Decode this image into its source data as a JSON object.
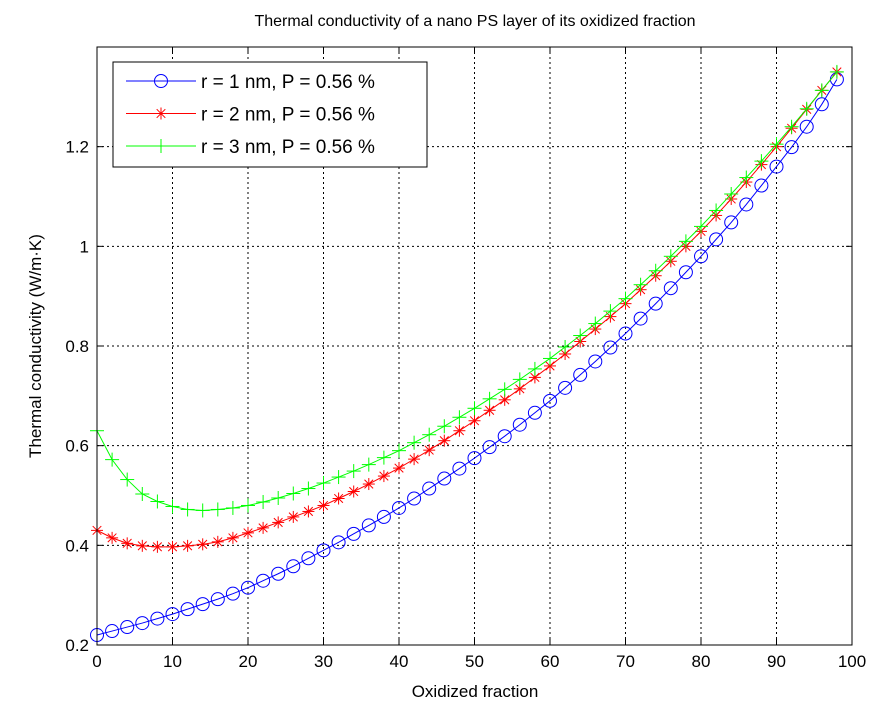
{
  "chart_data": {
    "type": "line",
    "title": "Thermal conductivity of a nano PS layer of its oxidized fraction",
    "xlabel": "Oxidized fraction",
    "ylabel": "Thermal conductivity  (W/m·K)",
    "xlim": [
      0,
      100
    ],
    "ylim": [
      0.2,
      1.4
    ],
    "xticks": [
      0,
      10,
      20,
      30,
      40,
      50,
      60,
      70,
      80,
      90,
      100
    ],
    "yticks": [
      0.2,
      0.4,
      0.6,
      0.8,
      1.0,
      1.2
    ],
    "ytick_labels": [
      "0.2",
      "0.4",
      "0.6",
      "0.8",
      "1",
      "1.2"
    ],
    "grid": true,
    "legend_position": "top-left",
    "x": [
      0,
      2,
      4,
      6,
      8,
      10,
      12,
      14,
      16,
      18,
      20,
      22,
      24,
      26,
      28,
      30,
      32,
      34,
      36,
      38,
      40,
      42,
      44,
      46,
      48,
      50,
      52,
      54,
      56,
      58,
      60,
      62,
      64,
      66,
      68,
      70,
      72,
      74,
      76,
      78,
      80,
      82,
      84,
      86,
      88,
      90,
      92,
      94,
      96,
      98
    ],
    "series": [
      {
        "name": "r = 1 nm, P = 0.56 %",
        "color": "#0000ff",
        "marker": "circle",
        "values": [
          0.22,
          0.228,
          0.236,
          0.244,
          0.253,
          0.262,
          0.272,
          0.282,
          0.292,
          0.303,
          0.315,
          0.329,
          0.343,
          0.358,
          0.374,
          0.39,
          0.406,
          0.423,
          0.44,
          0.457,
          0.475,
          0.494,
          0.514,
          0.534,
          0.554,
          0.575,
          0.597,
          0.619,
          0.642,
          0.666,
          0.69,
          0.716,
          0.742,
          0.769,
          0.797,
          0.825,
          0.855,
          0.885,
          0.916,
          0.948,
          0.98,
          1.014,
          1.048,
          1.084,
          1.122,
          1.16,
          1.199,
          1.24,
          1.285,
          1.335
        ]
      },
      {
        "name": "r = 2 nm, P = 0.56 %",
        "color": "#ff0000",
        "marker": "asterisk",
        "values": [
          0.43,
          0.415,
          0.404,
          0.399,
          0.397,
          0.397,
          0.399,
          0.402,
          0.407,
          0.415,
          0.425,
          0.435,
          0.446,
          0.457,
          0.468,
          0.48,
          0.494,
          0.508,
          0.523,
          0.539,
          0.555,
          0.573,
          0.591,
          0.61,
          0.63,
          0.65,
          0.671,
          0.692,
          0.714,
          0.737,
          0.76,
          0.784,
          0.809,
          0.834,
          0.859,
          0.885,
          0.913,
          0.941,
          0.97,
          1.0,
          1.03,
          1.062,
          1.095,
          1.129,
          1.164,
          1.2,
          1.237,
          1.275,
          1.313,
          1.35
        ]
      },
      {
        "name": "r = 3 nm, P = 0.56 %",
        "color": "#00ff00",
        "marker": "plus",
        "values": [
          0.63,
          0.572,
          0.532,
          0.503,
          0.488,
          0.478,
          0.472,
          0.47,
          0.472,
          0.475,
          0.48,
          0.487,
          0.495,
          0.504,
          0.514,
          0.525,
          0.537,
          0.549,
          0.562,
          0.576,
          0.59,
          0.606,
          0.622,
          0.639,
          0.657,
          0.675,
          0.694,
          0.713,
          0.733,
          0.754,
          0.775,
          0.798,
          0.821,
          0.845,
          0.87,
          0.895,
          0.923,
          0.951,
          0.98,
          1.01,
          1.04,
          1.072,
          1.105,
          1.138,
          1.171,
          1.205,
          1.24,
          1.276,
          1.313,
          1.35
        ]
      }
    ]
  }
}
